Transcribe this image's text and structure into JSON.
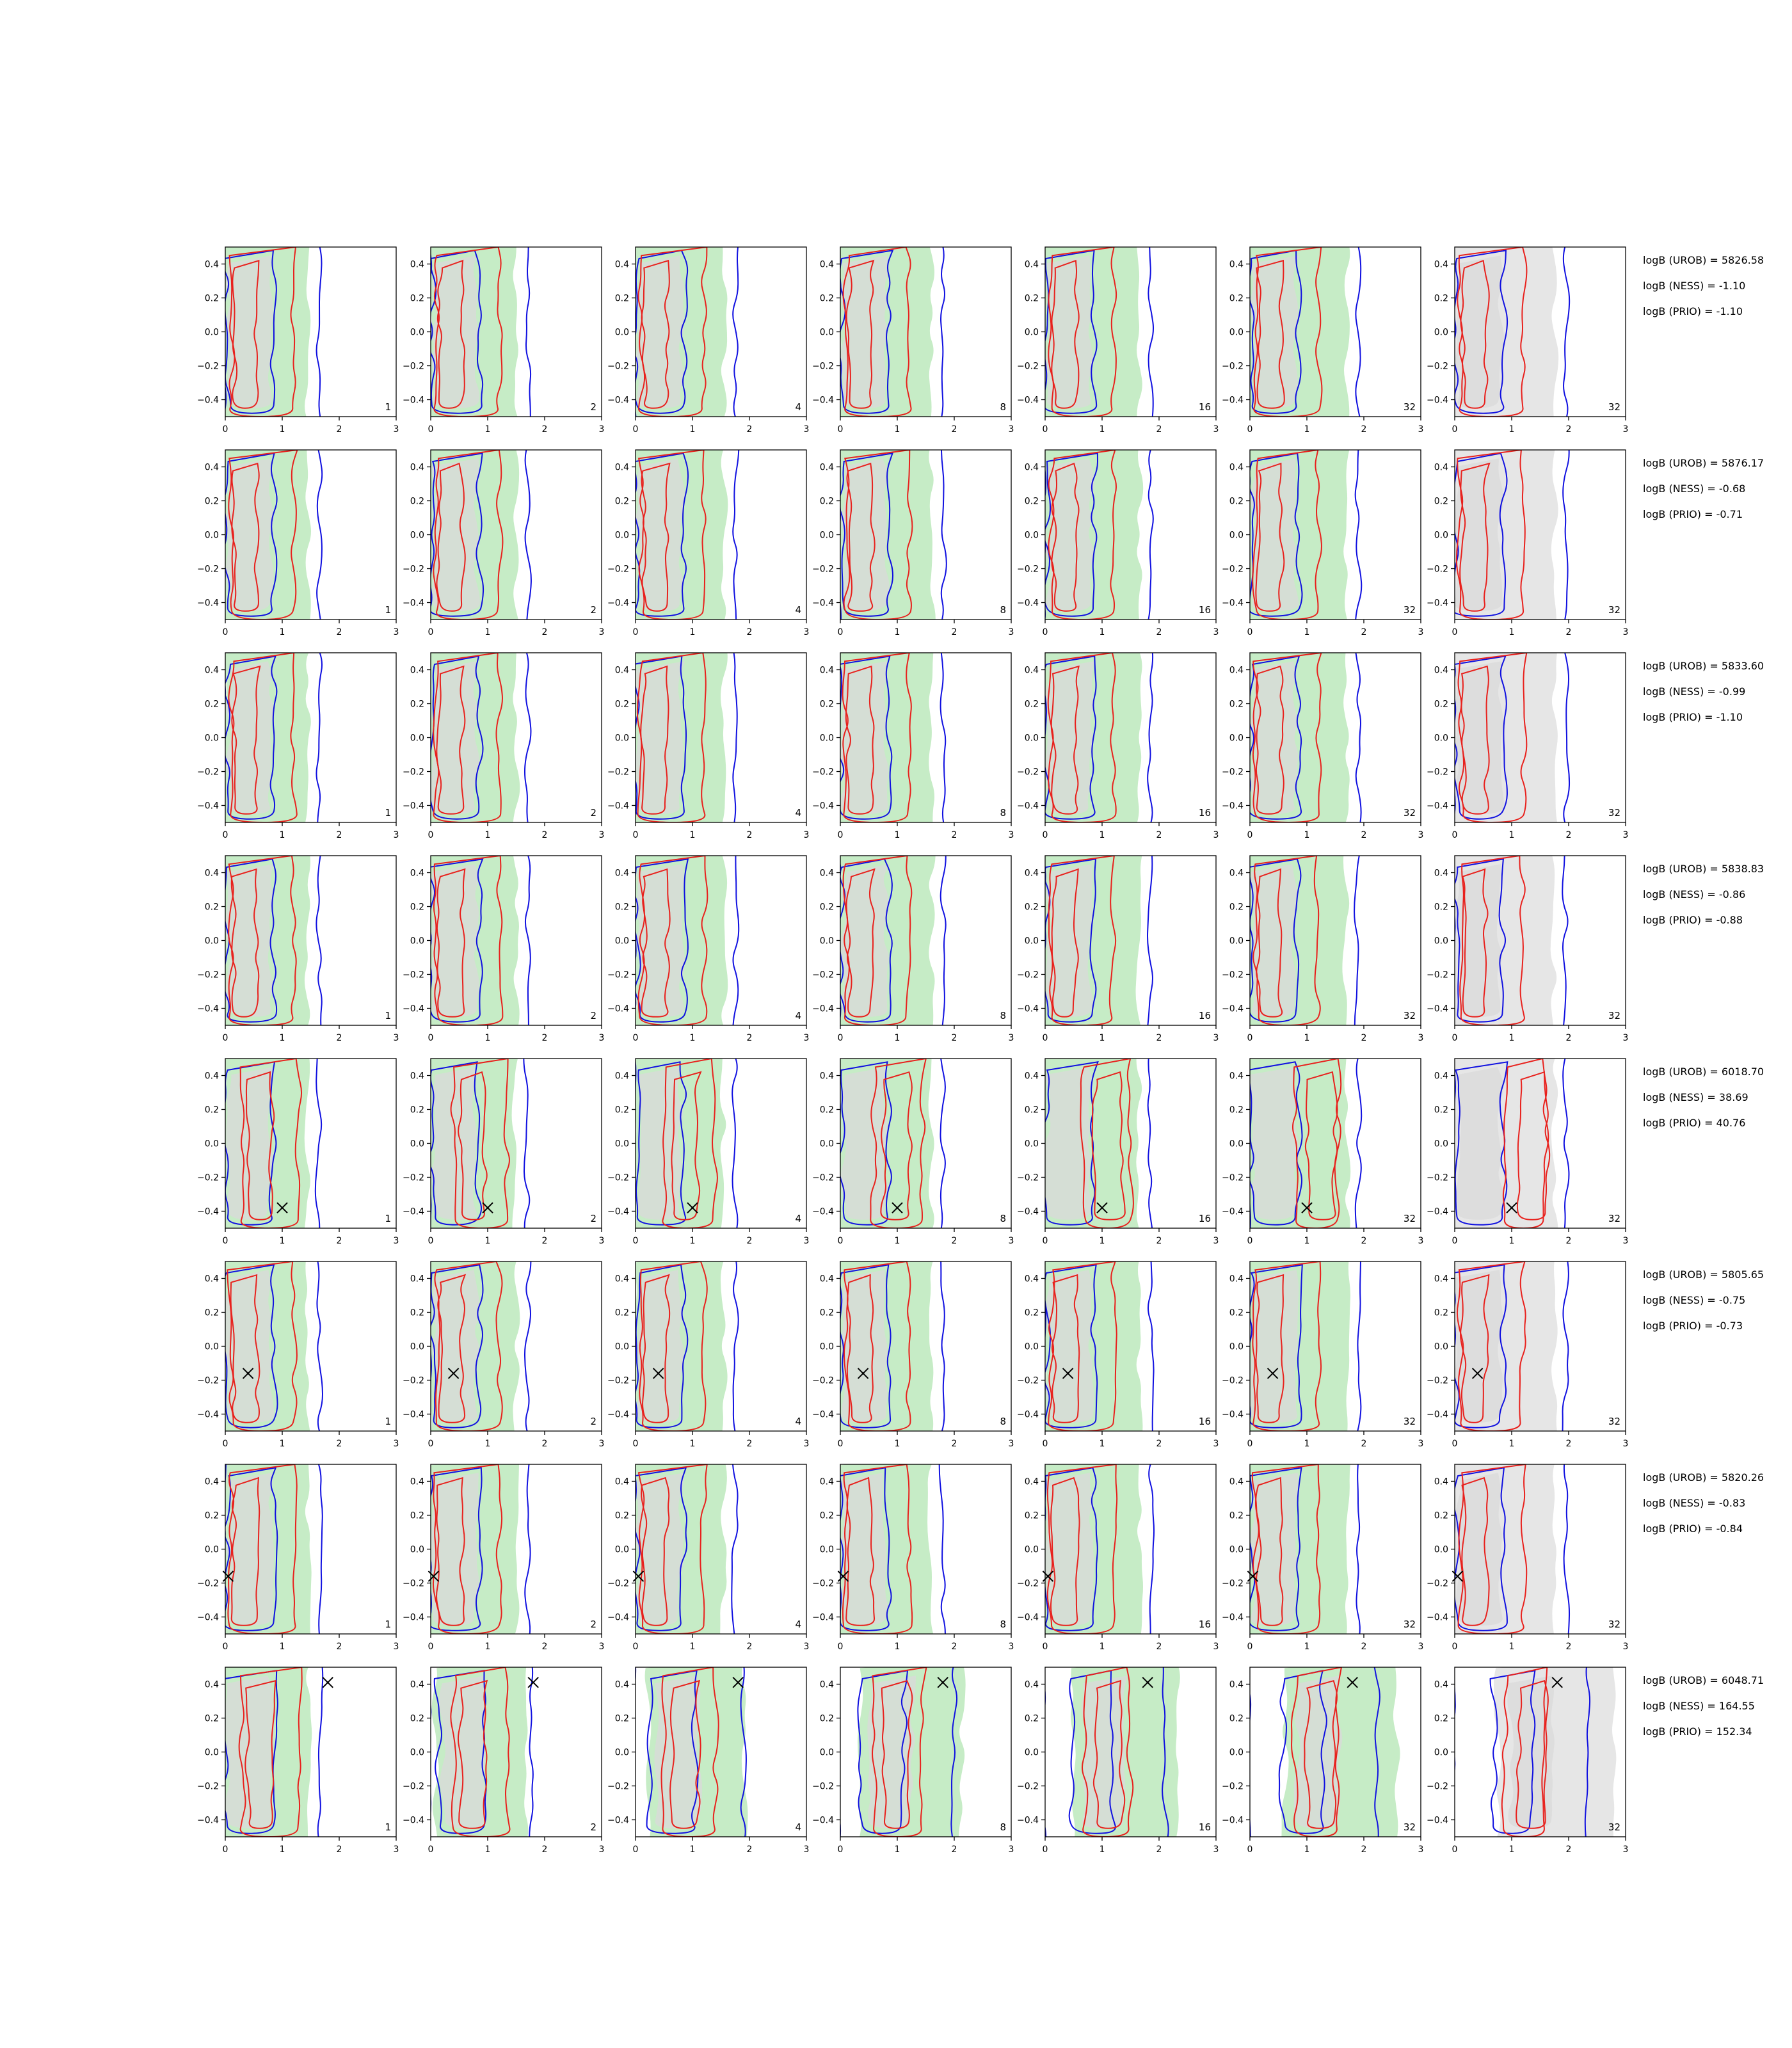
{
  "chart_data": {
    "type": "contour-grid",
    "rows": 8,
    "cols": 7,
    "xlim": [
      0,
      3
    ],
    "ylim": [
      -0.5,
      0.5
    ],
    "x_ticks": [
      "0",
      "1",
      "2",
      "3"
    ],
    "y_ticks": [
      "0.4",
      "0.2",
      "0.0",
      "−0.2",
      "−0.4"
    ],
    "panel_labels": [
      "1",
      "2",
      "4",
      "8",
      "16",
      "32",
      "32"
    ],
    "colors": {
      "fill_green": "#c6ecc6",
      "fill_gray": "#d9d9d9",
      "fill_lightgray": "#e6e6e6",
      "contour_red": "#e8211d",
      "contour_blue": "#1010e0",
      "marker": "#000000"
    },
    "markers": [
      null,
      null,
      null,
      null,
      {
        "x": 1.0,
        "y": -0.38
      },
      {
        "x": 0.4,
        "y": -0.16
      },
      {
        "x": 0.05,
        "y": -0.16
      },
      {
        "x": 1.8,
        "y": 0.41
      }
    ],
    "rows_stats": [
      {
        "urob": "logB (UROB) = 5826.58",
        "ness": "logB (NESS) = -1.10",
        "prio": "logB (PRIO) = -1.10"
      },
      {
        "urob": "logB (UROB) = 5876.17",
        "ness": "logB (NESS) = -0.68",
        "prio": "logB (PRIO) = -0.71"
      },
      {
        "urob": "logB (UROB) = 5833.60",
        "ness": "logB (NESS) = -0.99",
        "prio": "logB (PRIO) = -1.10"
      },
      {
        "urob": "logB (UROB) = 5838.83",
        "ness": "logB (NESS) = -0.86",
        "prio": "logB (PRIO) = -0.88"
      },
      {
        "urob": "logB (UROB) = 6018.70",
        "ness": "logB (NESS) = 38.69",
        "prio": "logB (PRIO) = 40.76"
      },
      {
        "urob": "logB (UROB) = 5805.65",
        "ness": "logB (NESS) = -0.75",
        "prio": "logB (PRIO) = -0.73"
      },
      {
        "urob": "logB (UROB) = 5820.26",
        "ness": "logB (NESS) = -0.83",
        "prio": "logB (PRIO) = -0.84"
      },
      {
        "urob": "logB (UROB) = 6048.71",
        "ness": "logB (NESS) = 164.55",
        "prio": "logB (PRIO) = 152.34"
      }
    ]
  }
}
